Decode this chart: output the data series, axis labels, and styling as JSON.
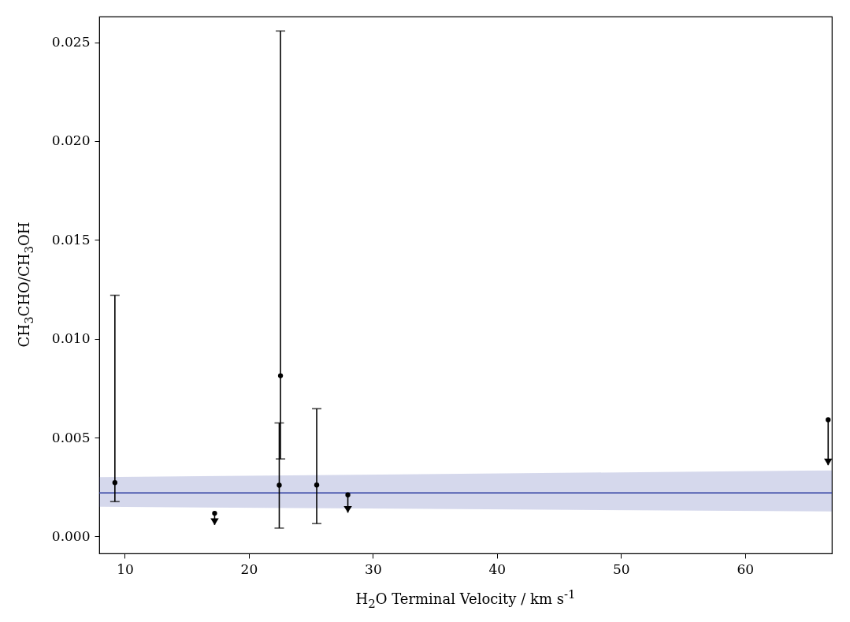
{
  "chart_data": {
    "type": "scatter",
    "xlabel": "H$_{2}$O Terminal Velocity / km s$^{-1}$",
    "ylabel": "CH$_{3}$CHO/CH$_{3}$OH",
    "xlim": [
      7.94,
      67.0
    ],
    "xticks": [
      10,
      20,
      30,
      40,
      50,
      60
    ],
    "ylim": [
      -0.00086,
      0.0263
    ],
    "yticks": [
      {
        "value": 0,
        "label": "0.000"
      },
      {
        "value": 0.005,
        "label": "0.005"
      },
      {
        "value": 0.01,
        "label": "0.010"
      },
      {
        "value": 0.015,
        "label": "0.015"
      },
      {
        "value": 0.02,
        "label": "0.020"
      },
      {
        "value": 0.025,
        "label": "0.025"
      }
    ],
    "grid": false,
    "marker": "circle",
    "series": [
      {
        "type": "line",
        "color": "#2b3aa0",
        "x": [
          7.94,
          67.0
        ],
        "values": [
          0.0022,
          0.0022
        ],
        "lower": [
          0.0015,
          0.00126
        ],
        "upper": [
          0.003,
          0.00334
        ],
        "line_style": "solid",
        "marker": "none"
      },
      {
        "color": "#000000",
        "x": [
          9.2,
          22.45,
          22.55,
          25.47
        ],
        "values": [
          0.00272,
          0.00259,
          0.00813,
          0.0026
        ],
        "errors": [
          [
            0.00176,
            0.0122
          ],
          [
            0.00042,
            0.00574
          ],
          [
            0.00392,
            0.02557
          ],
          [
            0.00065,
            0.00646
          ]
        ]
      },
      {
        "color": "#000000",
        "x": [
          17.24,
          27.98,
          66.7
        ],
        "values": [
          0.00117,
          0.0021,
          0.0059
        ],
        "errors": [
          [
            0.00058,
            0.00117
          ],
          [
            0.0012,
            0.0021
          ],
          [
            0.0036,
            0.0059
          ]
        ]
      }
    ]
  }
}
